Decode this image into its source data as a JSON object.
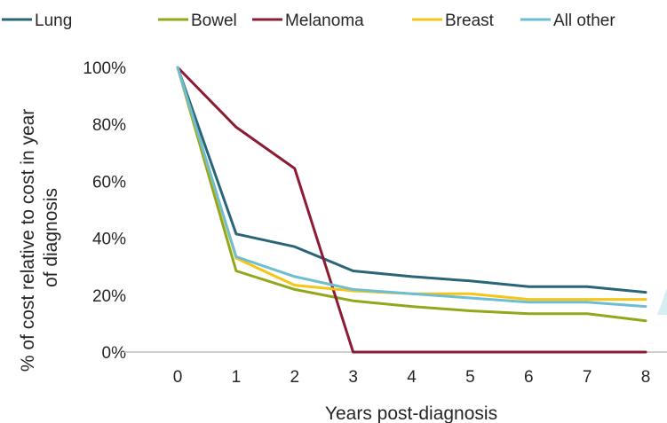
{
  "chart_data": {
    "type": "line",
    "title": "",
    "xlabel": "Years post-diagnosis",
    "ylabel_lines": [
      "% of cost relative to cost in year",
      "of diagnosis"
    ],
    "x": [
      0,
      1,
      2,
      3,
      4,
      5,
      6,
      7,
      8
    ],
    "xlim": [
      0,
      8
    ],
    "ylim": [
      0,
      100
    ],
    "y_ticks": [
      0,
      20,
      40,
      60,
      80,
      100
    ],
    "y_tick_labels": [
      "0%",
      "20%",
      "40%",
      "60%",
      "80%",
      "100%"
    ],
    "x_tick_labels": [
      "0",
      "1",
      "2",
      "3",
      "4",
      "5",
      "6",
      "7",
      "8"
    ],
    "grid": false,
    "legend_position": "top",
    "series": [
      {
        "name": "Lung",
        "color": "#2a6478",
        "values": [
          100,
          41.5,
          37,
          28.5,
          26.5,
          25,
          23,
          23,
          21
        ]
      },
      {
        "name": "Bowel",
        "color": "#93a71b",
        "values": [
          100,
          28.5,
          22,
          18,
          16,
          14.5,
          13.5,
          13.5,
          11
        ]
      },
      {
        "name": "Melanoma",
        "color": "#8c1b34",
        "values": [
          100,
          79,
          64.5,
          0,
          0,
          0,
          0,
          0,
          0
        ]
      },
      {
        "name": "Breast",
        "color": "#f5c518",
        "values": [
          100,
          33,
          23.5,
          21.5,
          20.5,
          20.5,
          18.5,
          18.5,
          18.5
        ]
      },
      {
        "name": "All other",
        "color": "#6dbed1",
        "values": [
          100,
          33.5,
          26.5,
          22,
          20.5,
          19,
          17.5,
          17.5,
          16
        ]
      }
    ]
  }
}
